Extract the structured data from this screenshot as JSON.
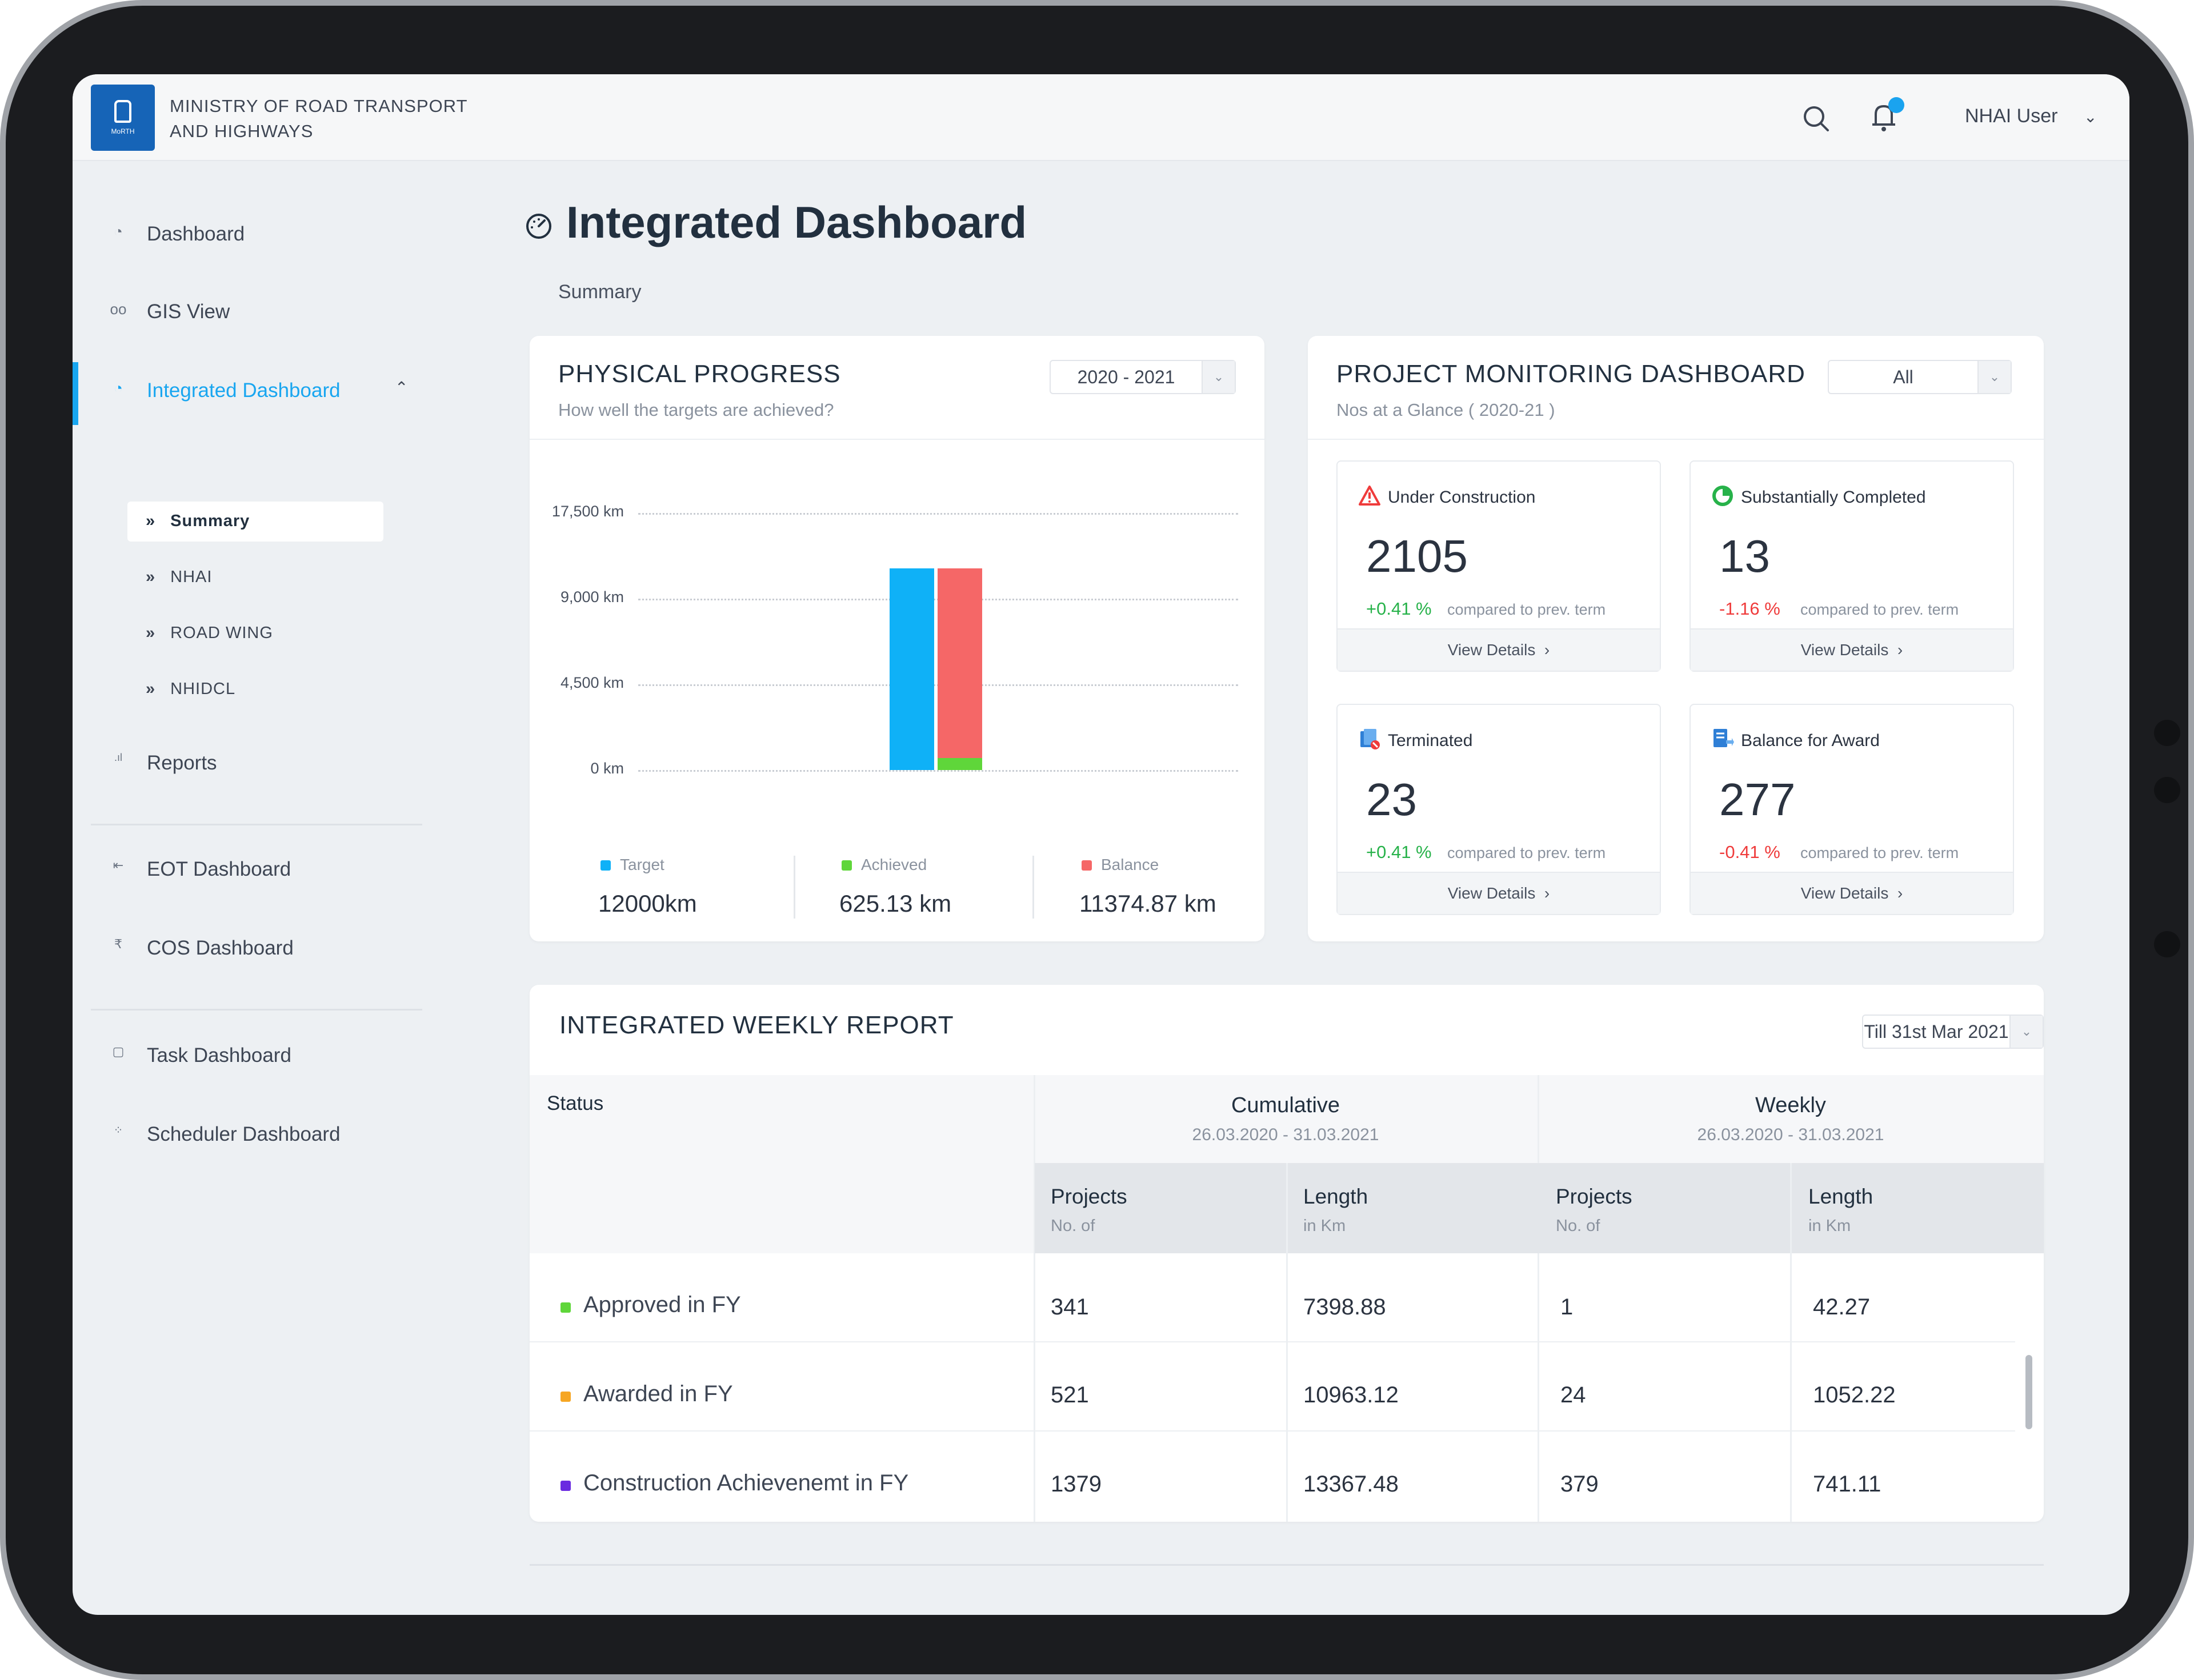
{
  "header": {
    "org_line1": "MINISTRY OF ROAD TRANSPORT",
    "org_line2": "AND HIGHWAYS",
    "logo_text": "MoRTH",
    "user_label": "NHAI User"
  },
  "sidebar": {
    "items": [
      {
        "label": "Dashboard",
        "icon": "gauge-icon"
      },
      {
        "label": "GIS View",
        "icon": "glasses-icon"
      },
      {
        "label": "Integrated Dashboard",
        "icon": "dashboard-gauge-icon"
      },
      {
        "label": "Reports",
        "icon": "bar-chart-icon"
      },
      {
        "label": "EOT Dashboard",
        "icon": "eot-icon"
      },
      {
        "label": "COS Dashboard",
        "icon": "rupee-icon"
      },
      {
        "label": "Task Dashboard",
        "icon": "task-icon"
      },
      {
        "label": "Scheduler Dashboard",
        "icon": "scheduler-icon"
      }
    ],
    "sub_items": [
      "Summary",
      "NHAI",
      "ROAD WING",
      "NHIDCL"
    ]
  },
  "main": {
    "title": "Integrated Dashboard",
    "section": "Summary"
  },
  "physical_progress": {
    "title": "PHYSICAL PROGRESS",
    "subtitle": "How well the targets are achieved?",
    "period": "2020 - 2021",
    "legend": [
      {
        "name": "Target",
        "value": "12000km",
        "color": "#0fb1f7"
      },
      {
        "name": "Achieved",
        "value": "625.13 km",
        "color": "#5fd63a"
      },
      {
        "name": "Balance",
        "value": "11374.87 km",
        "color": "#f56767"
      }
    ]
  },
  "chart_data": {
    "type": "bar",
    "categories": [
      "2020 - 2021"
    ],
    "series": [
      {
        "name": "Target",
        "values": [
          12000
        ]
      },
      {
        "name": "Achieved",
        "values": [
          625.13
        ]
      },
      {
        "name": "Balance",
        "values": [
          11374.87
        ]
      }
    ],
    "stacked_groups": [
      [
        "Target"
      ],
      [
        "Achieved",
        "Balance"
      ]
    ],
    "yticks": [
      "0 km",
      "4,500 km",
      "9,000 km",
      "17,500 km"
    ],
    "ytick_values": [
      0,
      4500,
      9000,
      17500
    ],
    "grid": true,
    "legend_position": "bottom"
  },
  "project_monitoring": {
    "title": "PROJECT MONITORING DASHBOARD",
    "subtitle": "Nos at a Glance ( 2020-21 )",
    "filter": "All",
    "compare_text": "compared to prev. term",
    "view_details": "View Details",
    "stats": [
      {
        "label": "Under Construction",
        "value": "2105",
        "change": "+0.41 %",
        "trend": "up",
        "icon": "warning-triangle-icon"
      },
      {
        "label": "Substantially Completed",
        "value": "13",
        "change": "-1.16 %",
        "trend": "down",
        "icon": "progress-circle-icon"
      },
      {
        "label": "Terminated",
        "value": "23",
        "change": "+0.41 %",
        "trend": "up",
        "icon": "terminated-doc-icon"
      },
      {
        "label": "Balance for Award",
        "value": "277",
        "change": "-0.41 %",
        "trend": "down",
        "icon": "award-doc-icon"
      }
    ]
  },
  "weekly_report": {
    "title": "INTEGRATED WEEKLY REPORT",
    "period": "Till 31st Mar 2021",
    "status_header": "Status",
    "groups": [
      {
        "title": "Cumulative",
        "dates": "26.03.2020 - 31.03.2021"
      },
      {
        "title": "Weekly",
        "dates": "26.03.2020 - 31.03.2021"
      }
    ],
    "sub_headers": [
      {
        "title": "Projects",
        "unit": "No. of"
      },
      {
        "title": "Length",
        "unit": "in Km"
      },
      {
        "title": "Projects",
        "unit": "No. of"
      },
      {
        "title": "Length",
        "unit": "in Km"
      }
    ],
    "rows": [
      {
        "label": "Approved in FY",
        "color": "#5fd63a",
        "cells": [
          "341",
          "7398.88",
          "1",
          "42.27"
        ]
      },
      {
        "label": "Awarded in FY",
        "color": "#f6a623",
        "cells": [
          "521",
          "10963.12",
          "24",
          "1052.22"
        ]
      },
      {
        "label": "Construction Achievenemt in FY",
        "color": "#6a2ae0",
        "cells": [
          "1379",
          "13367.48",
          "379",
          "741.11"
        ]
      }
    ]
  }
}
